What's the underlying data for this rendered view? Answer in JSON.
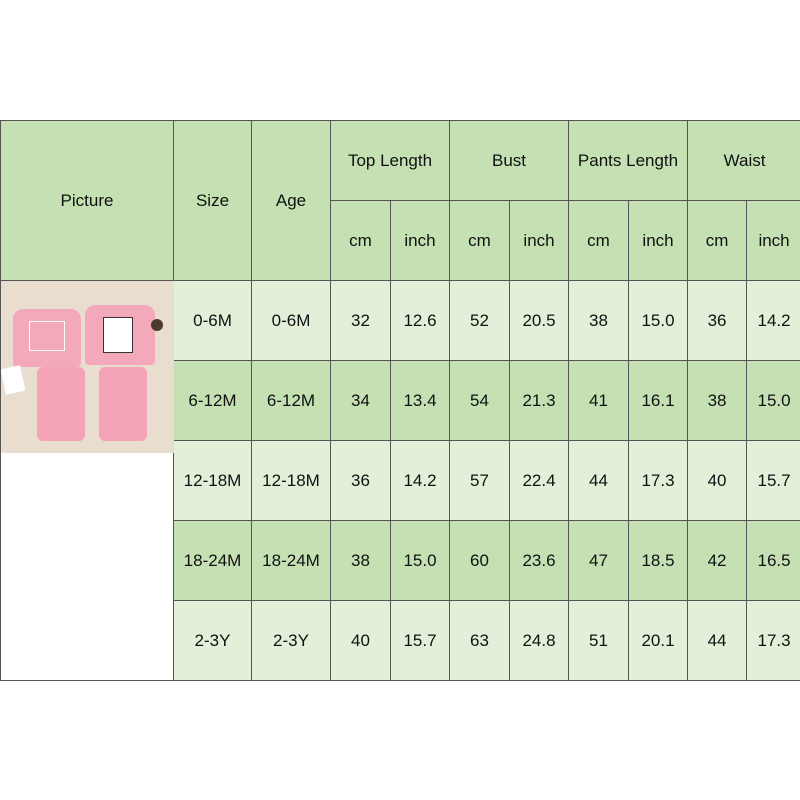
{
  "headers": {
    "picture": "Picture",
    "size": "Size",
    "age": "Age",
    "groups": [
      "Top Length",
      "Bust",
      "Pants Length",
      "Waist"
    ],
    "units": [
      "cm",
      "inch",
      "cm",
      "inch",
      "cm",
      "inch",
      "cm",
      "inch"
    ]
  },
  "rows": [
    [
      "0-6M",
      "0-6M",
      "32",
      "12.6",
      "52",
      "20.5",
      "38",
      "15.0",
      "36",
      "14.2"
    ],
    [
      "6-12M",
      "6-12M",
      "34",
      "13.4",
      "54",
      "21.3",
      "41",
      "16.1",
      "38",
      "15.0"
    ],
    [
      "12-18M",
      "12-18M",
      "36",
      "14.2",
      "57",
      "22.4",
      "44",
      "17.3",
      "40",
      "15.7"
    ],
    [
      "18-24M",
      "18-24M",
      "38",
      "15.0",
      "60",
      "23.6",
      "47",
      "18.5",
      "42",
      "16.5"
    ],
    [
      "2-3Y",
      "2-3Y",
      "40",
      "15.7",
      "63",
      "24.8",
      "51",
      "20.1",
      "44",
      "17.3"
    ]
  ],
  "colors": {
    "header": "#c5e0b3",
    "row_light": "#e2efd9",
    "row_green": "#c5e0b3"
  }
}
